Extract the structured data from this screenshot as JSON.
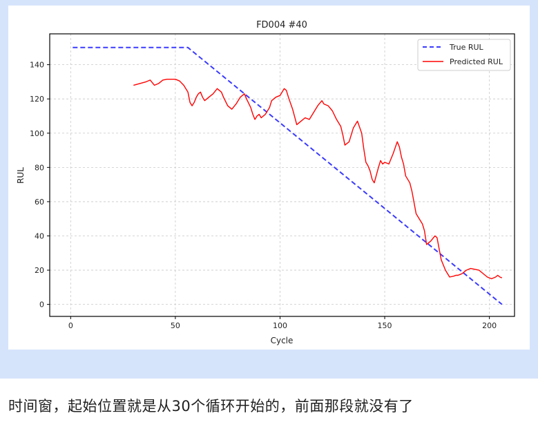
{
  "chart_data": {
    "type": "line",
    "title": "FD004 #40",
    "xlabel": "Cycle",
    "ylabel": "RUL",
    "xlim": [
      -10,
      212
    ],
    "ylim": [
      -7,
      158
    ],
    "xticks": [
      0,
      50,
      100,
      150,
      200
    ],
    "yticks": [
      0,
      20,
      40,
      60,
      80,
      100,
      120,
      140
    ],
    "grid": true,
    "legend_position": "top-right",
    "series": [
      {
        "name": "True RUL",
        "color": "#3a3aff",
        "style": "dashed",
        "x": [
          1,
          56,
          206
        ],
        "y": [
          150,
          150,
          0
        ]
      },
      {
        "name": "Predicted RUL",
        "color": "#ff0000",
        "style": "solid",
        "x": [
          30,
          33,
          36,
          38,
          40,
          42,
          44,
          46,
          48,
          50,
          52,
          54,
          56,
          57,
          58,
          59,
          60,
          61,
          62,
          63,
          64,
          66,
          68,
          70,
          72,
          73,
          75,
          77,
          79,
          81,
          83,
          84,
          86,
          87,
          88,
          89,
          90,
          91,
          93,
          95,
          96,
          98,
          100,
          102,
          103,
          104,
          106,
          108,
          110,
          112,
          114,
          116,
          118,
          120,
          121,
          123,
          125,
          127,
          129,
          130,
          131,
          133,
          135,
          137,
          139,
          140,
          141,
          142,
          143,
          144,
          145,
          147,
          148,
          149,
          150,
          152,
          154,
          156,
          157,
          158,
          159,
          160,
          161,
          162,
          163,
          165,
          166,
          168,
          169,
          170,
          172,
          174,
          175,
          177,
          179,
          181,
          183,
          184,
          185,
          186,
          187,
          188,
          189,
          191,
          193,
          195,
          197,
          199,
          201,
          203,
          204,
          205,
          206
        ],
        "y": [
          128,
          129,
          130,
          131,
          128,
          129,
          131,
          131.5,
          131.5,
          131.5,
          130.5,
          128,
          124,
          118,
          116,
          118,
          121,
          123,
          124,
          121,
          119,
          121,
          123,
          126,
          124,
          121,
          116,
          114,
          117,
          121,
          123,
          120,
          115,
          111,
          108,
          110,
          111,
          109,
          111,
          115,
          119,
          121,
          122,
          126,
          125,
          121,
          114,
          105,
          107,
          109,
          108,
          112,
          116,
          119,
          117,
          116,
          113,
          108,
          104,
          99,
          93,
          95,
          103,
          107,
          100,
          91,
          83,
          81,
          78,
          73,
          71,
          80,
          84,
          82,
          83,
          82,
          88,
          95,
          92,
          86,
          82,
          75,
          73,
          71,
          66,
          53,
          51,
          47,
          43,
          35,
          37,
          40,
          39,
          26,
          20,
          16,
          16.5,
          17,
          17,
          17.5,
          18,
          19,
          20,
          21,
          20.5,
          20,
          18,
          16,
          15,
          16,
          17,
          16,
          15.5
        ]
      }
    ]
  },
  "caption": {
    "text": "时间窗，起始位置就是从30个循环开始的，前面那段就没有了"
  }
}
